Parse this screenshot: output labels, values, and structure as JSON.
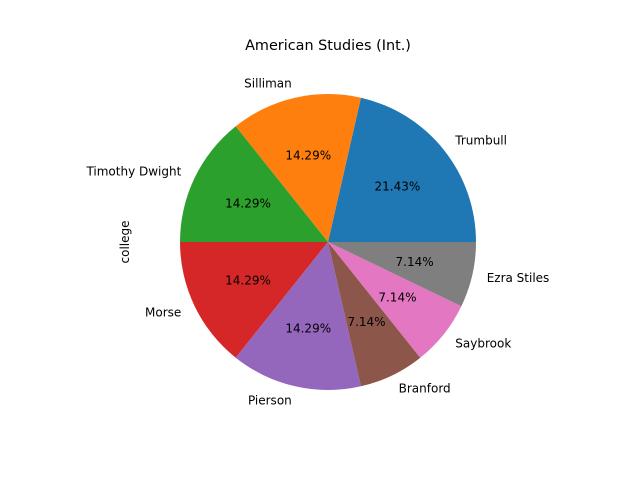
{
  "chart_data": {
    "type": "pie",
    "title": "American Studies (Int.)",
    "ylabel": "college",
    "start_angle_deg": 0,
    "direction": "counterclockwise",
    "slices": [
      {
        "label": "Trumbull",
        "value": 3,
        "percent_label": "21.43%",
        "color": "#1f77b4"
      },
      {
        "label": "Silliman",
        "value": 2,
        "percent_label": "14.29%",
        "color": "#ff7f0e"
      },
      {
        "label": "Timothy Dwight",
        "value": 2,
        "percent_label": "14.29%",
        "color": "#2ca02c"
      },
      {
        "label": "Morse",
        "value": 2,
        "percent_label": "14.29%",
        "color": "#d62728"
      },
      {
        "label": "Pierson",
        "value": 2,
        "percent_label": "14.29%",
        "color": "#9467bd"
      },
      {
        "label": "Branford",
        "value": 1,
        "percent_label": "7.14%",
        "color": "#8c564b"
      },
      {
        "label": "Saybrook",
        "value": 1,
        "percent_label": "7.14%",
        "color": "#e377c2"
      },
      {
        "label": "Ezra Stiles",
        "value": 1,
        "percent_label": "7.14%",
        "color": "#7f7f7f"
      }
    ]
  }
}
